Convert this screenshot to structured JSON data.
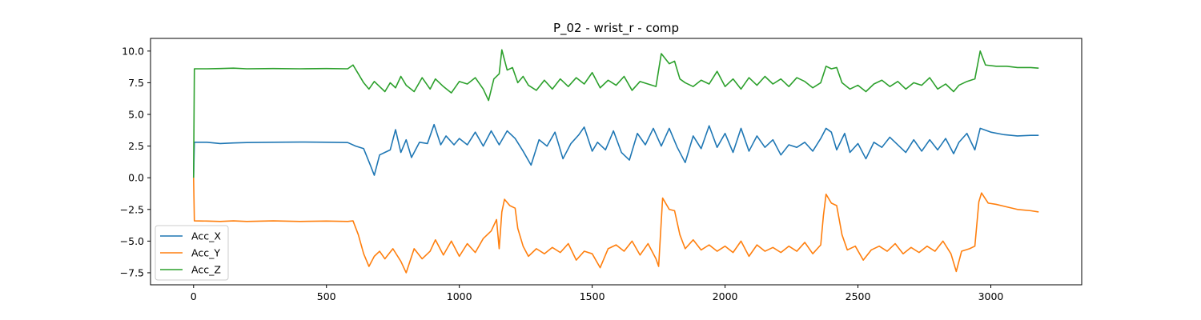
{
  "chart_data": {
    "type": "line",
    "title": "P_02 - wrist_r - comp",
    "xlabel": "",
    "ylabel": "",
    "xlim": [
      -162,
      3342
    ],
    "ylim": [
      -8.45,
      11.0
    ],
    "x_ticks": [
      0,
      500,
      1000,
      1500,
      2000,
      2500,
      3000
    ],
    "x_tick_labels": [
      "0",
      "500",
      "1000",
      "1500",
      "2000",
      "2500",
      "3000"
    ],
    "y_ticks": [
      -7.5,
      -5.0,
      -2.5,
      0.0,
      2.5,
      5.0,
      7.5,
      10.0
    ],
    "y_tick_labels": [
      "−7.5",
      "−5.0",
      "−2.5",
      "0.0",
      "2.5",
      "5.0",
      "7.5",
      "10.0"
    ],
    "grid": false,
    "legend_position": "lower-left",
    "x_range": [
      0,
      3180
    ],
    "series": [
      {
        "name": "Acc_X",
        "color": "#1f77b4",
        "points": [
          [
            0,
            0.0
          ],
          [
            3,
            2.8
          ],
          [
            50,
            2.8
          ],
          [
            100,
            2.7
          ],
          [
            150,
            2.75
          ],
          [
            200,
            2.78
          ],
          [
            300,
            2.8
          ],
          [
            400,
            2.82
          ],
          [
            500,
            2.8
          ],
          [
            580,
            2.78
          ],
          [
            610,
            2.5
          ],
          [
            640,
            2.3
          ],
          [
            665,
            1.0
          ],
          [
            680,
            0.2
          ],
          [
            700,
            1.8
          ],
          [
            720,
            2.0
          ],
          [
            740,
            2.2
          ],
          [
            760,
            3.8
          ],
          [
            780,
            2.0
          ],
          [
            800,
            3.0
          ],
          [
            820,
            1.6
          ],
          [
            850,
            2.8
          ],
          [
            880,
            2.7
          ],
          [
            905,
            4.2
          ],
          [
            930,
            2.6
          ],
          [
            950,
            3.3
          ],
          [
            980,
            2.6
          ],
          [
            1000,
            3.1
          ],
          [
            1030,
            2.6
          ],
          [
            1060,
            3.6
          ],
          [
            1090,
            2.5
          ],
          [
            1120,
            3.7
          ],
          [
            1150,
            2.6
          ],
          [
            1180,
            3.7
          ],
          [
            1210,
            3.1
          ],
          [
            1240,
            2.1
          ],
          [
            1270,
            1.0
          ],
          [
            1300,
            3.0
          ],
          [
            1330,
            2.5
          ],
          [
            1360,
            3.6
          ],
          [
            1390,
            1.5
          ],
          [
            1420,
            2.7
          ],
          [
            1450,
            3.4
          ],
          [
            1470,
            4.0
          ],
          [
            1500,
            2.1
          ],
          [
            1520,
            2.8
          ],
          [
            1550,
            2.2
          ],
          [
            1580,
            3.7
          ],
          [
            1610,
            2.0
          ],
          [
            1640,
            1.4
          ],
          [
            1670,
            3.5
          ],
          [
            1700,
            2.6
          ],
          [
            1730,
            3.9
          ],
          [
            1760,
            2.5
          ],
          [
            1790,
            3.9
          ],
          [
            1820,
            2.4
          ],
          [
            1850,
            1.2
          ],
          [
            1880,
            3.3
          ],
          [
            1910,
            2.3
          ],
          [
            1940,
            4.1
          ],
          [
            1970,
            2.4
          ],
          [
            2000,
            3.5
          ],
          [
            2030,
            2.0
          ],
          [
            2060,
            3.9
          ],
          [
            2090,
            2.1
          ],
          [
            2120,
            3.3
          ],
          [
            2150,
            2.4
          ],
          [
            2180,
            3.0
          ],
          [
            2210,
            1.8
          ],
          [
            2240,
            2.6
          ],
          [
            2270,
            2.4
          ],
          [
            2300,
            2.8
          ],
          [
            2330,
            2.1
          ],
          [
            2360,
            3.1
          ],
          [
            2380,
            3.9
          ],
          [
            2400,
            3.6
          ],
          [
            2420,
            2.2
          ],
          [
            2450,
            3.5
          ],
          [
            2470,
            2.0
          ],
          [
            2500,
            2.7
          ],
          [
            2530,
            1.5
          ],
          [
            2560,
            2.8
          ],
          [
            2590,
            2.4
          ],
          [
            2620,
            3.2
          ],
          [
            2650,
            2.6
          ],
          [
            2680,
            2.0
          ],
          [
            2710,
            3.0
          ],
          [
            2740,
            2.1
          ],
          [
            2770,
            3.0
          ],
          [
            2800,
            2.2
          ],
          [
            2830,
            3.1
          ],
          [
            2860,
            1.9
          ],
          [
            2880,
            2.8
          ],
          [
            2910,
            3.5
          ],
          [
            2940,
            2.2
          ],
          [
            2960,
            3.9
          ],
          [
            3000,
            3.6
          ],
          [
            3050,
            3.4
          ],
          [
            3100,
            3.3
          ],
          [
            3150,
            3.35
          ],
          [
            3180,
            3.35
          ]
        ]
      },
      {
        "name": "Acc_Y",
        "color": "#ff7f0e",
        "points": [
          [
            0,
            0.0
          ],
          [
            3,
            -3.4
          ],
          [
            50,
            -3.42
          ],
          [
            100,
            -3.45
          ],
          [
            150,
            -3.4
          ],
          [
            200,
            -3.45
          ],
          [
            300,
            -3.4
          ],
          [
            400,
            -3.45
          ],
          [
            500,
            -3.42
          ],
          [
            580,
            -3.45
          ],
          [
            600,
            -3.4
          ],
          [
            620,
            -4.5
          ],
          [
            640,
            -6.0
          ],
          [
            660,
            -7.0
          ],
          [
            680,
            -6.2
          ],
          [
            700,
            -5.8
          ],
          [
            720,
            -6.4
          ],
          [
            750,
            -5.6
          ],
          [
            780,
            -6.6
          ],
          [
            800,
            -7.5
          ],
          [
            830,
            -5.6
          ],
          [
            860,
            -6.4
          ],
          [
            890,
            -5.8
          ],
          [
            910,
            -4.9
          ],
          [
            940,
            -6.1
          ],
          [
            970,
            -5.0
          ],
          [
            1000,
            -6.2
          ],
          [
            1030,
            -5.2
          ],
          [
            1060,
            -5.9
          ],
          [
            1090,
            -4.8
          ],
          [
            1120,
            -4.2
          ],
          [
            1140,
            -3.3
          ],
          [
            1150,
            -5.6
          ],
          [
            1160,
            -2.7
          ],
          [
            1170,
            -1.7
          ],
          [
            1190,
            -2.2
          ],
          [
            1210,
            -2.4
          ],
          [
            1220,
            -4.0
          ],
          [
            1240,
            -5.4
          ],
          [
            1260,
            -6.2
          ],
          [
            1290,
            -5.6
          ],
          [
            1320,
            -6.0
          ],
          [
            1350,
            -5.5
          ],
          [
            1380,
            -5.9
          ],
          [
            1410,
            -5.2
          ],
          [
            1440,
            -6.5
          ],
          [
            1470,
            -5.8
          ],
          [
            1500,
            -6.0
          ],
          [
            1530,
            -7.1
          ],
          [
            1560,
            -5.6
          ],
          [
            1590,
            -5.3
          ],
          [
            1620,
            -5.8
          ],
          [
            1650,
            -5.0
          ],
          [
            1680,
            -6.1
          ],
          [
            1710,
            -5.2
          ],
          [
            1740,
            -6.4
          ],
          [
            1750,
            -7.0
          ],
          [
            1765,
            -1.6
          ],
          [
            1790,
            -2.5
          ],
          [
            1810,
            -2.6
          ],
          [
            1830,
            -4.5
          ],
          [
            1850,
            -5.6
          ],
          [
            1880,
            -4.9
          ],
          [
            1910,
            -5.7
          ],
          [
            1940,
            -5.3
          ],
          [
            1970,
            -5.8
          ],
          [
            2000,
            -5.4
          ],
          [
            2030,
            -5.9
          ],
          [
            2060,
            -5.0
          ],
          [
            2090,
            -6.2
          ],
          [
            2120,
            -5.3
          ],
          [
            2150,
            -5.8
          ],
          [
            2180,
            -5.5
          ],
          [
            2210,
            -5.9
          ],
          [
            2240,
            -5.4
          ],
          [
            2270,
            -5.8
          ],
          [
            2300,
            -5.1
          ],
          [
            2330,
            -6.0
          ],
          [
            2360,
            -5.3
          ],
          [
            2370,
            -3.0
          ],
          [
            2380,
            -1.3
          ],
          [
            2400,
            -2.0
          ],
          [
            2420,
            -2.2
          ],
          [
            2440,
            -4.5
          ],
          [
            2460,
            -5.7
          ],
          [
            2490,
            -5.4
          ],
          [
            2520,
            -6.5
          ],
          [
            2550,
            -5.7
          ],
          [
            2580,
            -5.4
          ],
          [
            2610,
            -5.8
          ],
          [
            2640,
            -5.2
          ],
          [
            2670,
            -6.0
          ],
          [
            2700,
            -5.5
          ],
          [
            2730,
            -5.9
          ],
          [
            2760,
            -5.4
          ],
          [
            2790,
            -5.8
          ],
          [
            2820,
            -5.0
          ],
          [
            2850,
            -6.0
          ],
          [
            2870,
            -7.4
          ],
          [
            2890,
            -5.8
          ],
          [
            2920,
            -5.6
          ],
          [
            2940,
            -5.4
          ],
          [
            2955,
            -1.9
          ],
          [
            2965,
            -1.2
          ],
          [
            2990,
            -2.0
          ],
          [
            3020,
            -2.1
          ],
          [
            3060,
            -2.3
          ],
          [
            3100,
            -2.5
          ],
          [
            3150,
            -2.6
          ],
          [
            3180,
            -2.7
          ]
        ]
      },
      {
        "name": "Acc_Z",
        "color": "#2ca02c",
        "points": [
          [
            0,
            0.0
          ],
          [
            3,
            8.6
          ],
          [
            50,
            8.6
          ],
          [
            100,
            8.62
          ],
          [
            150,
            8.65
          ],
          [
            200,
            8.6
          ],
          [
            300,
            8.62
          ],
          [
            400,
            8.6
          ],
          [
            500,
            8.62
          ],
          [
            580,
            8.6
          ],
          [
            600,
            8.9
          ],
          [
            620,
            8.2
          ],
          [
            640,
            7.5
          ],
          [
            660,
            7.0
          ],
          [
            680,
            7.6
          ],
          [
            700,
            7.2
          ],
          [
            720,
            6.8
          ],
          [
            740,
            7.5
          ],
          [
            760,
            7.1
          ],
          [
            780,
            8.0
          ],
          [
            800,
            7.3
          ],
          [
            830,
            6.8
          ],
          [
            860,
            7.9
          ],
          [
            890,
            7.0
          ],
          [
            910,
            7.8
          ],
          [
            940,
            7.2
          ],
          [
            970,
            6.7
          ],
          [
            1000,
            7.6
          ],
          [
            1030,
            7.4
          ],
          [
            1060,
            7.9
          ],
          [
            1090,
            7.0
          ],
          [
            1110,
            6.1
          ],
          [
            1130,
            7.8
          ],
          [
            1150,
            8.2
          ],
          [
            1160,
            10.1
          ],
          [
            1180,
            8.5
          ],
          [
            1200,
            8.7
          ],
          [
            1220,
            7.5
          ],
          [
            1240,
            8.0
          ],
          [
            1260,
            7.3
          ],
          [
            1290,
            6.9
          ],
          [
            1320,
            7.7
          ],
          [
            1350,
            7.0
          ],
          [
            1380,
            7.8
          ],
          [
            1410,
            7.2
          ],
          [
            1440,
            7.9
          ],
          [
            1470,
            7.4
          ],
          [
            1500,
            8.3
          ],
          [
            1530,
            7.1
          ],
          [
            1560,
            7.7
          ],
          [
            1590,
            7.3
          ],
          [
            1620,
            8.0
          ],
          [
            1650,
            6.9
          ],
          [
            1680,
            7.6
          ],
          [
            1710,
            7.4
          ],
          [
            1740,
            7.2
          ],
          [
            1760,
            9.8
          ],
          [
            1790,
            9.0
          ],
          [
            1810,
            9.2
          ],
          [
            1830,
            7.8
          ],
          [
            1850,
            7.5
          ],
          [
            1880,
            7.2
          ],
          [
            1910,
            7.7
          ],
          [
            1940,
            7.4
          ],
          [
            1970,
            8.4
          ],
          [
            2000,
            7.2
          ],
          [
            2030,
            7.8
          ],
          [
            2060,
            7.0
          ],
          [
            2090,
            7.9
          ],
          [
            2120,
            7.3
          ],
          [
            2150,
            8.0
          ],
          [
            2180,
            7.4
          ],
          [
            2210,
            7.8
          ],
          [
            2240,
            7.2
          ],
          [
            2270,
            7.9
          ],
          [
            2300,
            7.6
          ],
          [
            2330,
            7.1
          ],
          [
            2360,
            7.5
          ],
          [
            2380,
            8.8
          ],
          [
            2400,
            8.6
          ],
          [
            2420,
            8.7
          ],
          [
            2440,
            7.5
          ],
          [
            2470,
            7.0
          ],
          [
            2500,
            7.3
          ],
          [
            2530,
            6.8
          ],
          [
            2560,
            7.4
          ],
          [
            2590,
            7.7
          ],
          [
            2620,
            7.2
          ],
          [
            2650,
            7.6
          ],
          [
            2680,
            7.0
          ],
          [
            2710,
            7.5
          ],
          [
            2740,
            7.3
          ],
          [
            2770,
            7.9
          ],
          [
            2800,
            7.0
          ],
          [
            2830,
            7.4
          ],
          [
            2860,
            6.8
          ],
          [
            2880,
            7.3
          ],
          [
            2910,
            7.6
          ],
          [
            2940,
            7.8
          ],
          [
            2960,
            10.0
          ],
          [
            2980,
            8.9
          ],
          [
            3020,
            8.8
          ],
          [
            3060,
            8.8
          ],
          [
            3100,
            8.7
          ],
          [
            3150,
            8.7
          ],
          [
            3180,
            8.65
          ]
        ]
      }
    ]
  }
}
